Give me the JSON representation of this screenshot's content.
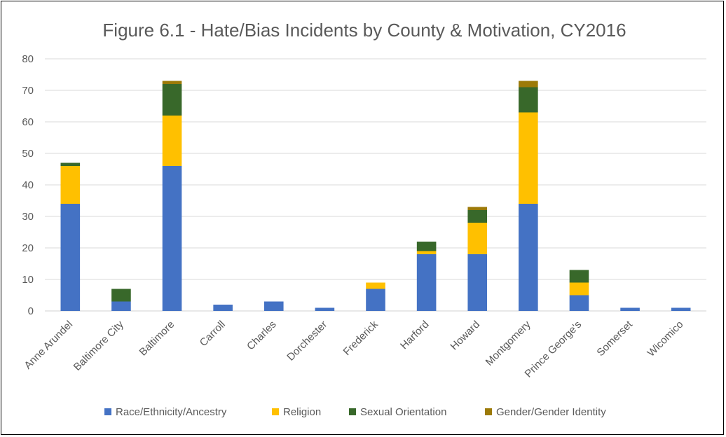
{
  "chart_data": {
    "type": "bar",
    "stacked": true,
    "title": "Figure 6.1 - Hate/Bias Incidents by County & Motivation, CY2016",
    "xlabel": "",
    "ylabel": "",
    "ylim": [
      0,
      80
    ],
    "yticks": [
      0,
      10,
      20,
      30,
      40,
      50,
      60,
      70,
      80
    ],
    "grid": true,
    "legend_position": "bottom",
    "categories": [
      "Anne Arundel",
      "Baltimore City",
      "Baltimore",
      "Carroll",
      "Charles",
      "Dorchester",
      "Frederick",
      "Harford",
      "Howard",
      "Montgomery",
      "Prince George's",
      "Somerset",
      "Wicomico"
    ],
    "series": [
      {
        "name": "Race/Ethnicity/Ancestry",
        "color": "#4472C4",
        "values": [
          34,
          3,
          46,
          2,
          3,
          1,
          7,
          18,
          18,
          34,
          5,
          1,
          1
        ]
      },
      {
        "name": "Religion",
        "color": "#FFC000",
        "values": [
          12,
          0,
          16,
          0,
          0,
          0,
          2,
          1,
          10,
          29,
          4,
          0,
          0
        ]
      },
      {
        "name": "Sexual Orientation",
        "color": "#38682A",
        "values": [
          1,
          4,
          10,
          0,
          0,
          0,
          0,
          3,
          4,
          8,
          4,
          0,
          0
        ]
      },
      {
        "name": "Gender/Gender Identity",
        "color": "#9C7A08",
        "values": [
          0,
          0,
          1,
          0,
          0,
          0,
          0,
          0,
          1,
          2,
          0,
          0,
          0
        ]
      }
    ]
  }
}
